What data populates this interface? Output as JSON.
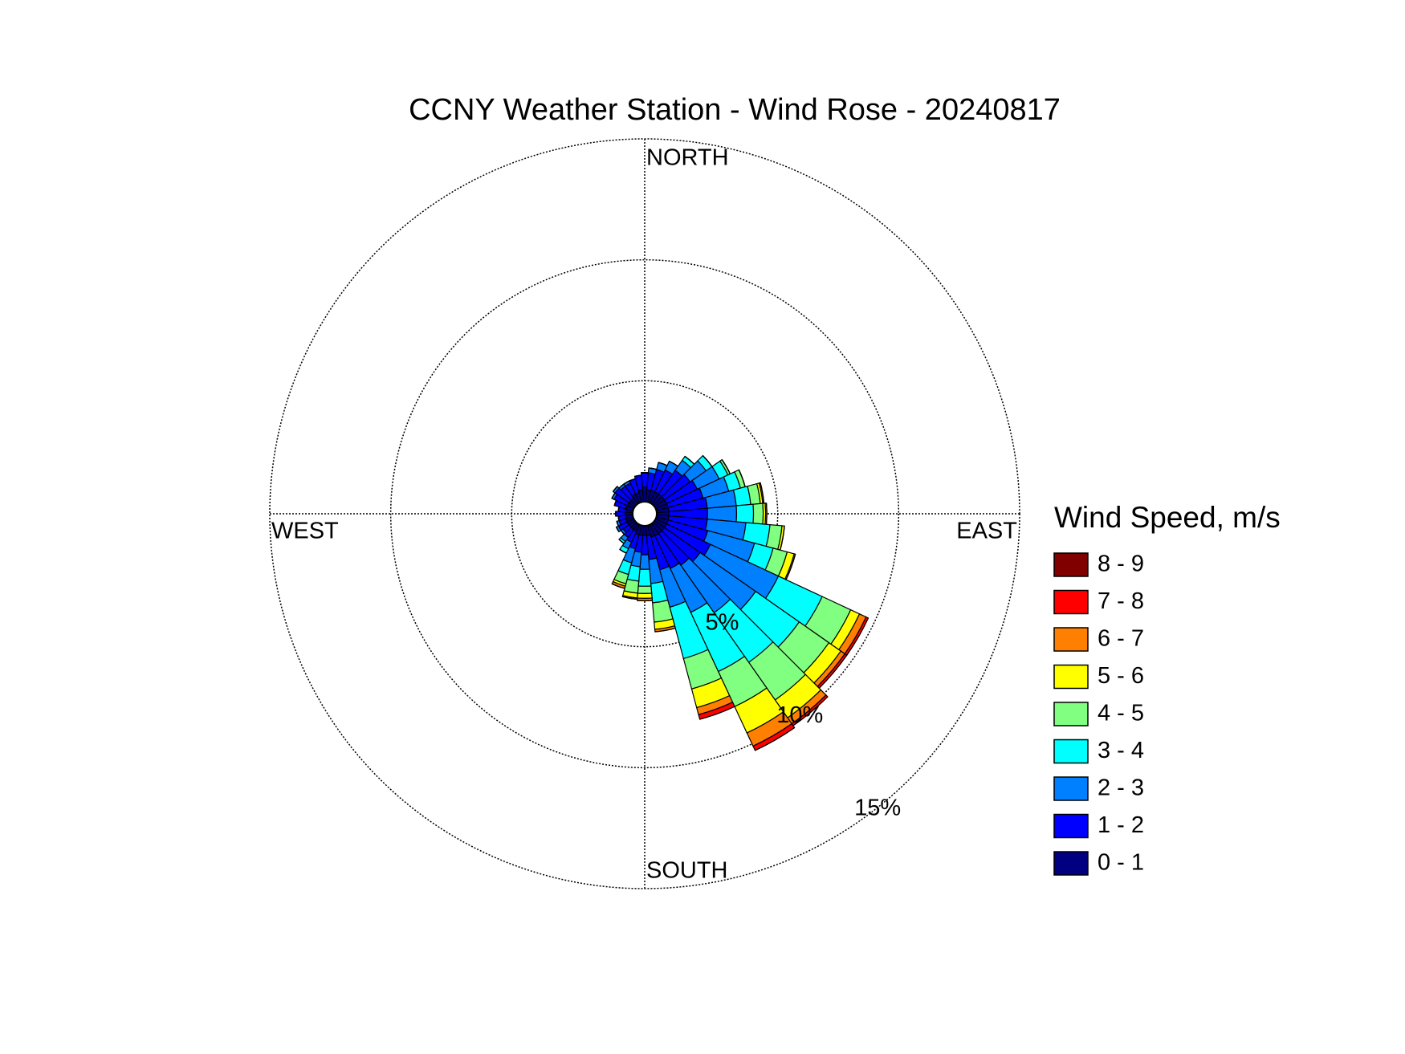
{
  "chart_data": {
    "type": "windrose",
    "title": "CCNY Weather Station - Wind Rose - 20240817",
    "direction_labels": {
      "north": "NORTH",
      "east": "EAST",
      "south": "SOUTH",
      "west": "WEST"
    },
    "legend_title": "Wind Speed, m/s",
    "directions": [
      0,
      10,
      20,
      30,
      40,
      50,
      60,
      70,
      80,
      90,
      100,
      110,
      120,
      130,
      140,
      150,
      160,
      170,
      180,
      190,
      200,
      210,
      220,
      230,
      240,
      250,
      260,
      270,
      280,
      290,
      300,
      310,
      320,
      330,
      340,
      350
    ],
    "ylim": [
      0,
      15
    ],
    "yticks": [
      {
        "value": 5,
        "label": "5%"
      },
      {
        "value": 10,
        "label": "10%"
      },
      {
        "value": 15,
        "label": "15%"
      }
    ],
    "grid": true,
    "series": [
      {
        "name": "0 - 1",
        "color": "#000080",
        "values": [
          0.6,
          0.5,
          0.5,
          0.5,
          0.5,
          0.5,
          0.5,
          0.5,
          0.5,
          0.5,
          0.5,
          0.5,
          0.5,
          0.5,
          0.5,
          0.5,
          0.5,
          0.4,
          0.4,
          0.4,
          0.4,
          0.3,
          0.3,
          0.3,
          0.3,
          0.3,
          0.3,
          0.3,
          0.3,
          0.3,
          0.3,
          0.3,
          0.3,
          0.4,
          0.4,
          0.5
        ]
      },
      {
        "name": "1 - 2",
        "color": "#0000ff",
        "values": [
          0.6,
          0.7,
          0.9,
          1.0,
          1.2,
          1.3,
          1.4,
          1.5,
          1.6,
          1.6,
          1.6,
          1.7,
          2.0,
          1.8,
          1.6,
          1.5,
          1.4,
          1.0,
          0.8,
          0.7,
          0.6,
          0.5,
          0.4,
          0.3,
          0.4,
          0.3,
          0.3,
          0.4,
          0.3,
          0.5,
          0.6,
          0.7,
          0.6,
          0.5,
          0.6,
          0.6
        ]
      },
      {
        "name": "2 - 3",
        "color": "#0080ff",
        "values": [
          0,
          0.2,
          0.3,
          0.4,
          0.5,
          0.8,
          1.0,
          1.1,
          1.2,
          1.2,
          1.6,
          2.0,
          3.1,
          2.8,
          2.4,
          2.0,
          1.6,
          1.0,
          0.6,
          0.6,
          0.6,
          0.3,
          0.2,
          0.1,
          0.1,
          0.1,
          0,
          0,
          0,
          0,
          0.1,
          0.1,
          0.1,
          0.1,
          0,
          0
        ]
      },
      {
        "name": "3 - 4",
        "color": "#00ffff",
        "values": [
          0,
          0,
          0,
          0,
          0.2,
          0.3,
          0.4,
          0.5,
          0.6,
          0.7,
          1.0,
          0.8,
          2.0,
          2.2,
          2.5,
          2.7,
          2.2,
          0.8,
          0.7,
          0.6,
          0.5,
          0.2,
          0.1,
          0,
          0,
          0,
          0,
          0,
          0,
          0,
          0,
          0,
          0,
          0,
          0,
          0
        ]
      },
      {
        "name": "4 - 5",
        "color": "#80ff80",
        "values": [
          0,
          0,
          0,
          0,
          0,
          0,
          0.1,
          0.2,
          0.4,
          0.4,
          0.5,
          0.6,
          1.3,
          1.5,
          1.9,
          1.6,
          1.3,
          0.8,
          0.3,
          0.5,
          0.4,
          0,
          0,
          0,
          0,
          0,
          0,
          0,
          0,
          0,
          0,
          0,
          0,
          0,
          0,
          0
        ]
      },
      {
        "name": "5 - 6",
        "color": "#ffff00",
        "values": [
          0,
          0,
          0,
          0,
          0,
          0,
          0,
          0,
          0.1,
          0.1,
          0.1,
          0.3,
          0.4,
          0.6,
          0.9,
          1.2,
          0.8,
          0.3,
          0.2,
          0.2,
          0.1,
          0,
          0,
          0,
          0,
          0,
          0,
          0,
          0,
          0,
          0,
          0,
          0,
          0,
          0,
          0
        ]
      },
      {
        "name": "6 - 7",
        "color": "#ff8000",
        "values": [
          0,
          0,
          0,
          0,
          0,
          0,
          0,
          0,
          0.05,
          0.05,
          0,
          0.05,
          0.3,
          0.2,
          0.3,
          0.6,
          0.3,
          0.1,
          0.1,
          0.05,
          0.1,
          0,
          0,
          0,
          0,
          0,
          0,
          0,
          0,
          0,
          0,
          0,
          0,
          0,
          0,
          0
        ]
      },
      {
        "name": "7 - 8",
        "color": "#ff0000",
        "values": [
          0,
          0,
          0,
          0,
          0,
          0,
          0,
          0,
          0,
          0,
          0,
          0,
          0.1,
          0.1,
          0.1,
          0.2,
          0.2,
          0,
          0,
          0,
          0,
          0,
          0,
          0,
          0,
          0,
          0,
          0,
          0,
          0,
          0,
          0,
          0,
          0,
          0,
          0
        ]
      },
      {
        "name": "8 - 9",
        "color": "#800000",
        "values": [
          0,
          0,
          0,
          0,
          0,
          0,
          0,
          0,
          0,
          0,
          0,
          0,
          0,
          0,
          0,
          0,
          0,
          0,
          0,
          0,
          0,
          0,
          0,
          0,
          0,
          0,
          0,
          0,
          0,
          0,
          0,
          0,
          0,
          0,
          0,
          0
        ]
      }
    ]
  }
}
